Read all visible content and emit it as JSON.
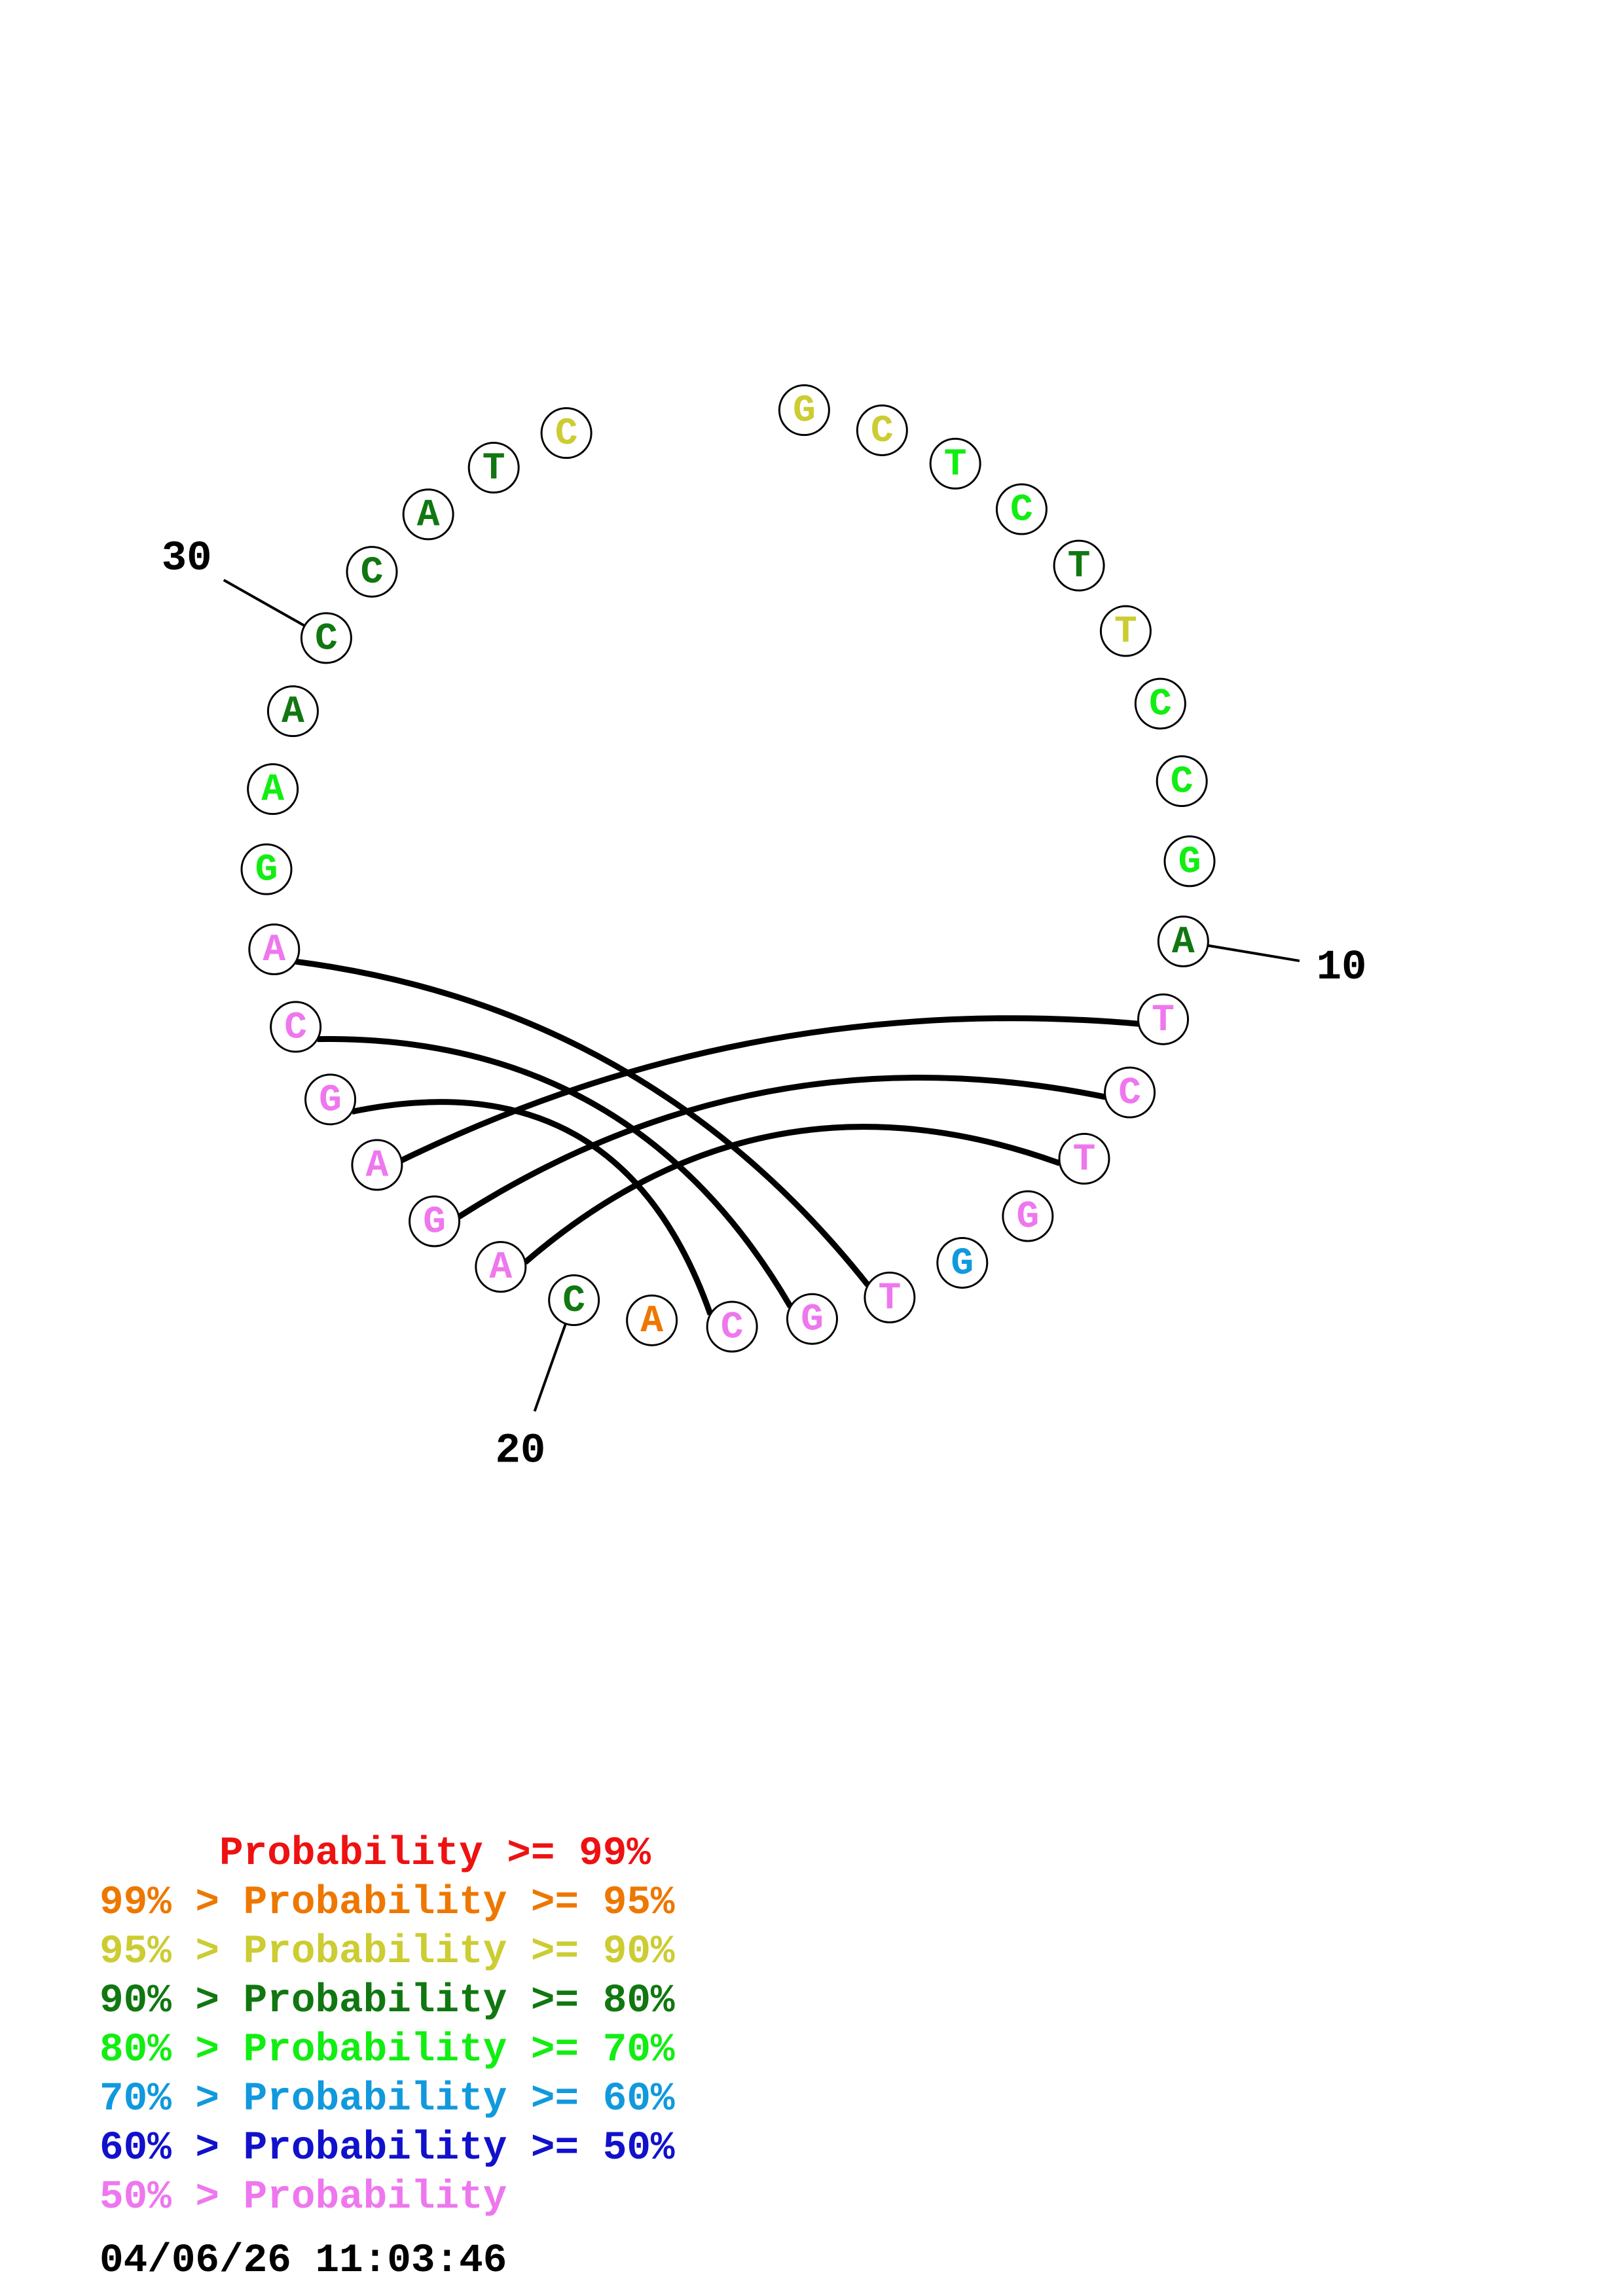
{
  "colors": {
    "p99": "#ee1111",
    "p95": "#ee7700",
    "p90": "#cccc33",
    "p80": "#117711",
    "p70": "#11ee11",
    "p60": "#1199dd",
    "p50": "#1111cc",
    "plt50": "#ee77ee"
  },
  "nucleotides": [
    {
      "n": 1,
      "base": "G",
      "level": "p90"
    },
    {
      "n": 2,
      "base": "C",
      "level": "p90"
    },
    {
      "n": 3,
      "base": "T",
      "level": "p70"
    },
    {
      "n": 4,
      "base": "C",
      "level": "p70"
    },
    {
      "n": 5,
      "base": "T",
      "level": "p80"
    },
    {
      "n": 6,
      "base": "T",
      "level": "p90"
    },
    {
      "n": 7,
      "base": "C",
      "level": "p70"
    },
    {
      "n": 8,
      "base": "C",
      "level": "p70"
    },
    {
      "n": 9,
      "base": "G",
      "level": "p70"
    },
    {
      "n": 10,
      "base": "A",
      "level": "p80"
    },
    {
      "n": 11,
      "base": "T",
      "level": "plt50"
    },
    {
      "n": 12,
      "base": "C",
      "level": "plt50"
    },
    {
      "n": 13,
      "base": "T",
      "level": "plt50"
    },
    {
      "n": 14,
      "base": "G",
      "level": "plt50"
    },
    {
      "n": 15,
      "base": "G",
      "level": "p60"
    },
    {
      "n": 16,
      "base": "T",
      "level": "plt50"
    },
    {
      "n": 17,
      "base": "G",
      "level": "plt50"
    },
    {
      "n": 18,
      "base": "C",
      "level": "plt50"
    },
    {
      "n": 19,
      "base": "A",
      "level": "p95"
    },
    {
      "n": 20,
      "base": "C",
      "level": "p80"
    },
    {
      "n": 21,
      "base": "A",
      "level": "plt50"
    },
    {
      "n": 22,
      "base": "G",
      "level": "plt50"
    },
    {
      "n": 23,
      "base": "A",
      "level": "plt50"
    },
    {
      "n": 24,
      "base": "G",
      "level": "plt50"
    },
    {
      "n": 25,
      "base": "C",
      "level": "plt50"
    },
    {
      "n": 26,
      "base": "A",
      "level": "plt50"
    },
    {
      "n": 27,
      "base": "G",
      "level": "p70"
    },
    {
      "n": 28,
      "base": "A",
      "level": "p70"
    },
    {
      "n": 29,
      "base": "A",
      "level": "p80"
    },
    {
      "n": 30,
      "base": "C",
      "level": "p80"
    },
    {
      "n": 31,
      "base": "C",
      "level": "p80"
    },
    {
      "n": 32,
      "base": "A",
      "level": "p80"
    },
    {
      "n": 33,
      "base": "T",
      "level": "p80"
    },
    {
      "n": 34,
      "base": "C",
      "level": "p90"
    }
  ],
  "pairs": [
    [
      11,
      23
    ],
    [
      12,
      22
    ],
    [
      13,
      21
    ],
    [
      16,
      26
    ],
    [
      17,
      25
    ],
    [
      18,
      24
    ]
  ],
  "position_labels": [
    {
      "n": 10,
      "text": "10"
    },
    {
      "n": 20,
      "text": "20"
    },
    {
      "n": 30,
      "text": "30"
    }
  ],
  "legend": [
    {
      "text": "     Probability >= 99%",
      "level": "p99"
    },
    {
      "text": "99% > Probability >= 95%",
      "level": "p95"
    },
    {
      "text": "95% > Probability >= 90%",
      "level": "p90"
    },
    {
      "text": "90% > Probability >= 80%",
      "level": "p80"
    },
    {
      "text": "80% > Probability >= 70%",
      "level": "p70"
    },
    {
      "text": "70% > Probability >= 60%",
      "level": "p60"
    },
    {
      "text": "60% > Probability >= 50%",
      "level": "p50"
    },
    {
      "text": "50% > Probability",
      "level": "plt50"
    }
  ],
  "timestamp": "04/06/26 11:03:46"
}
